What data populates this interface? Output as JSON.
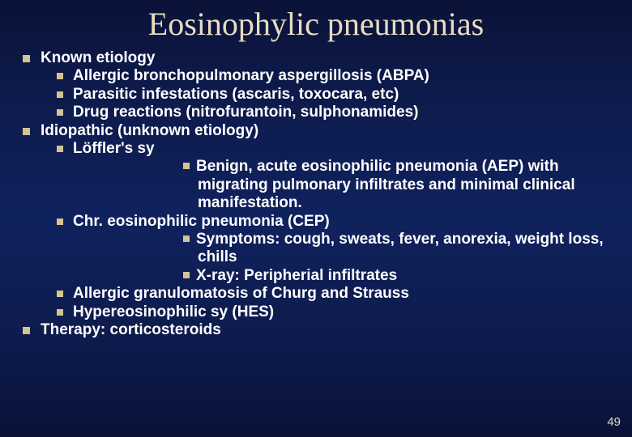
{
  "slide": {
    "title": "Eosinophylic pneumonias",
    "slide_number": "49",
    "background_gradient": [
      "#0a1238",
      "#10225e",
      "#0a1238"
    ],
    "title_color": "#e8dcc0",
    "text_color": "#ffffff",
    "bullet_color": "#d4c590",
    "title_fontsize": 40,
    "body_fontsize": 19,
    "items": [
      {
        "text": "Known etiology",
        "children": [
          {
            "text": "Allergic bronchopulmonary aspergillosis (ABPA)"
          },
          {
            "text": "Parasitic infestations (ascaris, toxocara, etc)"
          },
          {
            "text": "Drug reactions (nitrofurantoin, sulphonamides)"
          }
        ]
      },
      {
        "text": "Idiopathic (unknown etiology)",
        "children": [
          {
            "text": "Löffler's sy",
            "children": [
              {
                "text": "Benign, acute eosinophilic pneumonia (AEP) with migrating pulmonary infiltrates and minimal clinical manifestation."
              }
            ]
          },
          {
            "text": "Chr. eosinophilic pneumonia (CEP)",
            "children": [
              {
                "text": "Symptoms: cough, sweats, fever, anorexia, weight loss, chills"
              },
              {
                "text": "X-ray: Peripherial infiltrates"
              }
            ]
          },
          {
            "text": "Allergic granulomatosis of Churg and Strauss"
          },
          {
            "text": "Hypereosinophilic sy (HES)"
          }
        ]
      },
      {
        "text": "Therapy: corticosteroids"
      }
    ]
  }
}
